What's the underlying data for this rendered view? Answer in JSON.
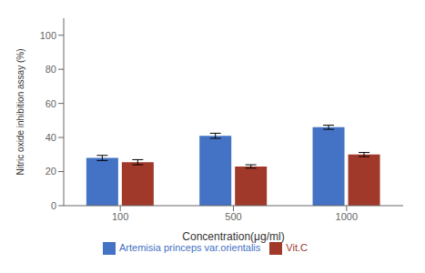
{
  "chart_data": {
    "type": "bar",
    "categories": [
      "100",
      "500",
      "1000"
    ],
    "series": [
      {
        "name": "Artemisia princeps var.orientalis",
        "color": "#4472C4",
        "values": [
          28,
          41,
          46
        ],
        "errors": [
          1.5,
          1.5,
          1.2
        ]
      },
      {
        "name": "Vit.C",
        "color": "#A0392A",
        "values": [
          25.5,
          23,
          30
        ],
        "errors": [
          1.5,
          1.0,
          1.2
        ]
      }
    ],
    "xlabel": "Concentration(μg/ml)",
    "ylabel": "Nitric oxide inhibition assay (%)",
    "ylim": [
      0,
      110
    ],
    "yticks": [
      0,
      20,
      40,
      60,
      80,
      100
    ],
    "grid": false
  }
}
